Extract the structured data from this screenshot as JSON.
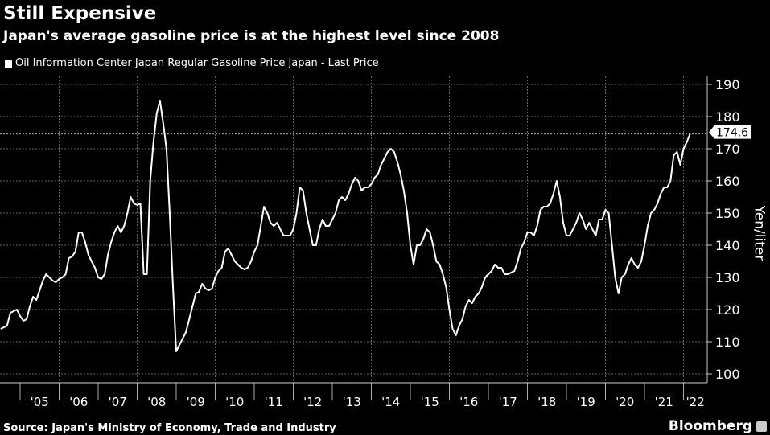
{
  "title": "Still Expensive",
  "subtitle": "Japan's average gasoline price is at the highest level since 2008",
  "legend": "Oil Information Center Japan Regular Gasoline Price Japan - Last Price",
  "source": "Source: Japan's Ministry of Economy, Trade and Industry",
  "brand": "Bloomberg",
  "colors": {
    "background": "#000000",
    "line": "#ffffff",
    "grid": "#777777"
  },
  "chart_data": {
    "type": "line",
    "title": "Still Expensive",
    "subtitle": "Japan's average gasoline price is at the highest level since 2008",
    "ylabel": "Yen/liter",
    "ylim": [
      97.5,
      194
    ],
    "yticks": [
      100,
      110,
      120,
      130,
      140,
      150,
      160,
      170,
      180,
      190
    ],
    "xtick_labels": [
      "'05",
      "'06",
      "'07",
      "'08",
      "'09",
      "'10",
      "'11",
      "'12",
      "'13",
      "'14",
      "'15",
      "'16",
      "'17",
      "'18",
      "'19",
      "'20",
      "'21",
      "'22"
    ],
    "grid": true,
    "y_axis_side": "right",
    "last_value_label": "174.6",
    "series": [
      {
        "name": "Oil Information Center Japan Regular Gasoline Price Japan - Last Price",
        "points": [
          [
            "2004-07",
            114
          ],
          [
            "2004-09",
            115
          ],
          [
            "2004-10",
            119
          ],
          [
            "2004-12",
            120
          ],
          [
            "2005-01",
            118
          ],
          [
            "2005-02",
            116.5
          ],
          [
            "2005-03",
            117
          ],
          [
            "2005-04",
            121
          ],
          [
            "2005-05",
            124
          ],
          [
            "2005-06",
            123
          ],
          [
            "2005-07",
            126
          ],
          [
            "2005-08",
            129
          ],
          [
            "2005-09",
            131
          ],
          [
            "2005-10",
            130
          ],
          [
            "2005-11",
            129
          ],
          [
            "2005-12",
            128.5
          ],
          [
            "2006-01",
            129.5
          ],
          [
            "2006-02",
            130
          ],
          [
            "2006-03",
            131
          ],
          [
            "2006-04",
            136
          ],
          [
            "2006-05",
            136.5
          ],
          [
            "2006-06",
            138
          ],
          [
            "2006-07",
            144
          ],
          [
            "2006-08",
            144
          ],
          [
            "2006-09",
            141
          ],
          [
            "2006-10",
            137
          ],
          [
            "2006-11",
            135
          ],
          [
            "2006-12",
            133
          ],
          [
            "2007-01",
            130
          ],
          [
            "2007-02",
            129.5
          ],
          [
            "2007-03",
            131
          ],
          [
            "2007-04",
            137
          ],
          [
            "2007-05",
            141
          ],
          [
            "2007-06",
            144
          ],
          [
            "2007-07",
            146
          ],
          [
            "2007-08",
            144
          ],
          [
            "2007-09",
            146
          ],
          [
            "2007-10",
            150
          ],
          [
            "2007-11",
            155
          ],
          [
            "2007-12",
            153
          ],
          [
            "2008-01",
            152.5
          ],
          [
            "2008-02",
            153
          ],
          [
            "2008-03",
            131
          ],
          [
            "2008-04",
            131
          ],
          [
            "2008-05",
            160
          ],
          [
            "2008-06",
            172
          ],
          [
            "2008-07",
            181
          ],
          [
            "2008-08",
            185
          ],
          [
            "2008-09",
            178
          ],
          [
            "2008-10",
            170
          ],
          [
            "2008-11",
            150
          ],
          [
            "2008-12",
            127
          ],
          [
            "2009-01",
            107
          ],
          [
            "2009-02",
            109
          ],
          [
            "2009-03",
            111
          ],
          [
            "2009-04",
            113
          ],
          [
            "2009-05",
            117
          ],
          [
            "2009-06",
            121
          ],
          [
            "2009-07",
            125
          ],
          [
            "2009-08",
            125.5
          ],
          [
            "2009-09",
            128
          ],
          [
            "2009-10",
            126.5
          ],
          [
            "2009-11",
            126
          ],
          [
            "2009-12",
            126.5
          ],
          [
            "2010-01",
            130
          ],
          [
            "2010-02",
            132
          ],
          [
            "2010-03",
            133
          ],
          [
            "2010-04",
            138
          ],
          [
            "2010-05",
            139
          ],
          [
            "2010-06",
            137
          ],
          [
            "2010-07",
            135
          ],
          [
            "2010-08",
            134
          ],
          [
            "2010-09",
            133
          ],
          [
            "2010-10",
            132.5
          ],
          [
            "2010-11",
            133
          ],
          [
            "2010-12",
            135
          ],
          [
            "2011-01",
            138
          ],
          [
            "2011-02",
            140
          ],
          [
            "2011-03",
            146
          ],
          [
            "2011-04",
            152
          ],
          [
            "2011-05",
            150
          ],
          [
            "2011-06",
            147
          ],
          [
            "2011-07",
            146
          ],
          [
            "2011-08",
            147
          ],
          [
            "2011-09",
            145
          ],
          [
            "2011-10",
            143
          ],
          [
            "2011-11",
            143
          ],
          [
            "2011-12",
            143
          ],
          [
            "2012-01",
            145
          ],
          [
            "2012-02",
            150
          ],
          [
            "2012-03",
            158
          ],
          [
            "2012-04",
            157
          ],
          [
            "2012-05",
            150
          ],
          [
            "2012-06",
            145
          ],
          [
            "2012-07",
            140
          ],
          [
            "2012-08",
            140
          ],
          [
            "2012-09",
            145
          ],
          [
            "2012-10",
            148
          ],
          [
            "2012-11",
            146
          ],
          [
            "2012-12",
            146
          ],
          [
            "2013-01",
            148
          ],
          [
            "2013-02",
            150
          ],
          [
            "2013-03",
            154
          ],
          [
            "2013-04",
            155
          ],
          [
            "2013-05",
            154
          ],
          [
            "2013-06",
            156
          ],
          [
            "2013-07",
            159
          ],
          [
            "2013-08",
            161
          ],
          [
            "2013-09",
            160
          ],
          [
            "2013-10",
            157
          ],
          [
            "2013-11",
            158
          ],
          [
            "2013-12",
            158
          ],
          [
            "2014-01",
            159
          ],
          [
            "2014-02",
            161
          ],
          [
            "2014-03",
            162
          ],
          [
            "2014-04",
            165
          ],
          [
            "2014-05",
            167
          ],
          [
            "2014-06",
            169
          ],
          [
            "2014-07",
            170
          ],
          [
            "2014-08",
            169
          ],
          [
            "2014-09",
            166
          ],
          [
            "2014-10",
            162
          ],
          [
            "2014-11",
            157
          ],
          [
            "2014-12",
            150
          ],
          [
            "2015-01",
            140
          ],
          [
            "2015-02",
            134
          ],
          [
            "2015-03",
            140
          ],
          [
            "2015-04",
            140
          ],
          [
            "2015-05",
            142
          ],
          [
            "2015-06",
            145
          ],
          [
            "2015-07",
            144
          ],
          [
            "2015-08",
            140
          ],
          [
            "2015-09",
            135
          ],
          [
            "2015-10",
            134
          ],
          [
            "2015-11",
            131
          ],
          [
            "2015-12",
            127
          ],
          [
            "2016-01",
            120
          ],
          [
            "2016-02",
            114
          ],
          [
            "2016-03",
            112
          ],
          [
            "2016-04",
            115
          ],
          [
            "2016-05",
            117
          ],
          [
            "2016-06",
            121
          ],
          [
            "2016-07",
            123
          ],
          [
            "2016-08",
            122
          ],
          [
            "2016-09",
            124
          ],
          [
            "2016-10",
            125
          ],
          [
            "2016-11",
            127
          ],
          [
            "2016-12",
            130
          ],
          [
            "2017-01",
            131
          ],
          [
            "2017-02",
            132
          ],
          [
            "2017-03",
            134
          ],
          [
            "2017-04",
            133
          ],
          [
            "2017-05",
            133
          ],
          [
            "2017-06",
            131
          ],
          [
            "2017-07",
            131
          ],
          [
            "2017-08",
            131.5
          ],
          [
            "2017-09",
            132
          ],
          [
            "2017-10",
            135
          ],
          [
            "2017-11",
            139
          ],
          [
            "2017-12",
            141
          ],
          [
            "2018-01",
            144
          ],
          [
            "2018-02",
            144
          ],
          [
            "2018-03",
            143
          ],
          [
            "2018-04",
            146
          ],
          [
            "2018-05",
            151
          ],
          [
            "2018-06",
            152
          ],
          [
            "2018-07",
            152
          ],
          [
            "2018-08",
            153
          ],
          [
            "2018-09",
            156
          ],
          [
            "2018-10",
            160
          ],
          [
            "2018-11",
            155
          ],
          [
            "2018-12",
            147
          ],
          [
            "2019-01",
            143
          ],
          [
            "2019-02",
            143
          ],
          [
            "2019-03",
            145
          ],
          [
            "2019-04",
            147
          ],
          [
            "2019-05",
            150
          ],
          [
            "2019-06",
            148
          ],
          [
            "2019-07",
            145
          ],
          [
            "2019-08",
            147
          ],
          [
            "2019-09",
            145
          ],
          [
            "2019-10",
            143
          ],
          [
            "2019-11",
            148
          ],
          [
            "2019-12",
            148
          ],
          [
            "2020-01",
            151
          ],
          [
            "2020-02",
            150
          ],
          [
            "2020-03",
            140
          ],
          [
            "2020-04",
            130
          ],
          [
            "2020-05",
            125
          ],
          [
            "2020-06",
            130
          ],
          [
            "2020-07",
            131
          ],
          [
            "2020-08",
            134
          ],
          [
            "2020-09",
            136
          ],
          [
            "2020-10",
            134
          ],
          [
            "2020-11",
            133
          ],
          [
            "2020-12",
            135
          ],
          [
            "2021-01",
            140
          ],
          [
            "2021-02",
            146
          ],
          [
            "2021-03",
            150
          ],
          [
            "2021-04",
            151
          ],
          [
            "2021-05",
            153
          ],
          [
            "2021-06",
            156
          ],
          [
            "2021-07",
            158
          ],
          [
            "2021-08",
            158
          ],
          [
            "2021-09",
            160
          ],
          [
            "2021-10",
            168
          ],
          [
            "2021-11",
            169
          ],
          [
            "2021-12",
            165
          ],
          [
            "2022-01",
            170
          ],
          [
            "2022-02",
            172
          ],
          [
            "2022-03",
            174.6
          ]
        ]
      }
    ]
  }
}
